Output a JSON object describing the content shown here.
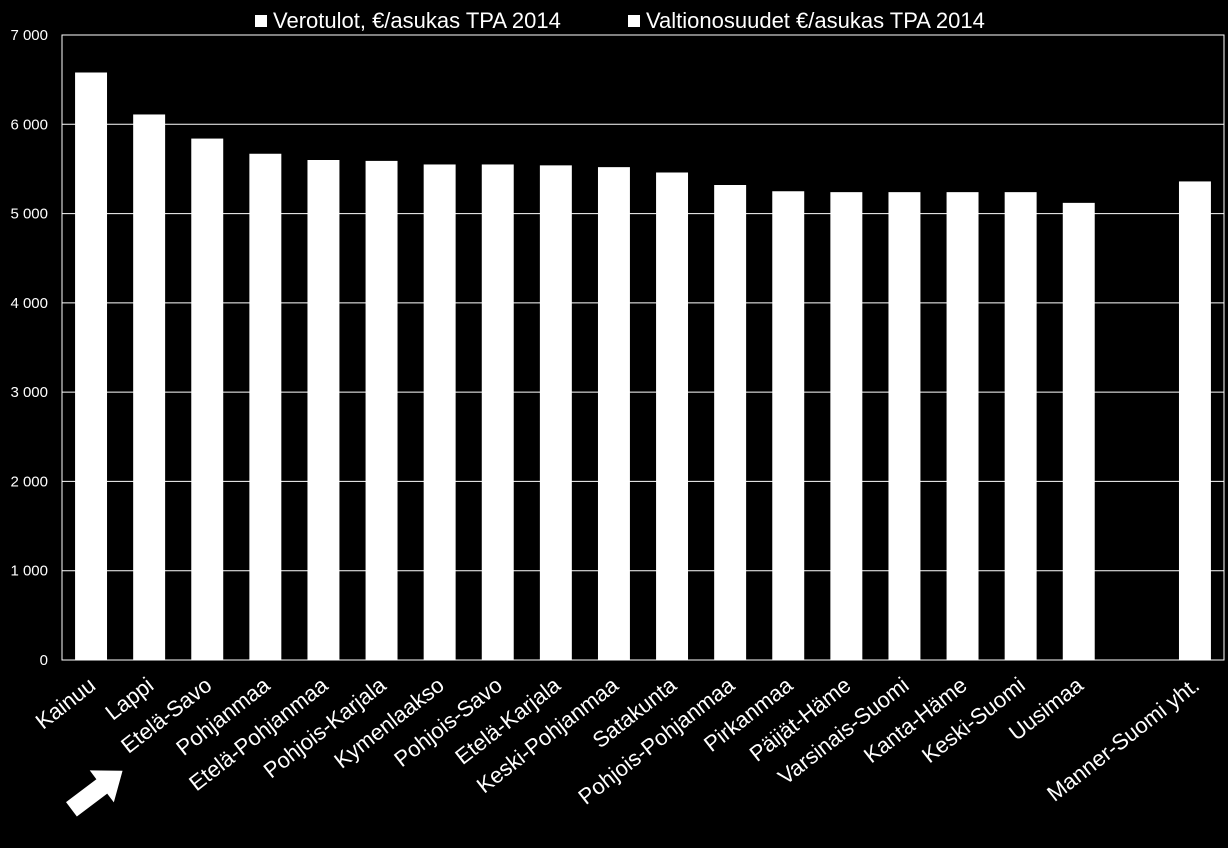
{
  "chart_data": {
    "type": "bar",
    "title": "",
    "xlabel": "",
    "ylabel": "",
    "ylim": [
      0,
      7000
    ],
    "y_ticks": [
      "0",
      "1 000",
      "2 000",
      "3 000",
      "4 000",
      "5 000",
      "6 000",
      "7 000"
    ],
    "grid": true,
    "legend_position": "top",
    "legend": [
      "Verotulot, €/asukas TPA 2014",
      "Valtionosuudet €/asukas TPA 2014"
    ],
    "categories": [
      "Kainuu",
      "Lappi",
      "Etelä-Savo",
      "Pohjanmaa",
      "Etelä-Pohjanmaa",
      "Pohjois-Karjala",
      "Kymenlaakso",
      "Pohjois-Savo",
      "Etelä-Karjala",
      "Keski-Pohjanmaa",
      "Satakunta",
      "Pohjois-Pohjanmaa",
      "Pirkanmaa",
      "Päijät-Häme",
      "Varsinais-Suomi",
      "Kanta-Häme",
      "Keski-Suomi",
      "Uusimaa",
      "",
      "Manner-Suomi yht."
    ],
    "series": [
      {
        "name": "Verotulot, €/asukas TPA 2014 + Valtionosuudet €/asukas TPA 2014",
        "values": [
          6580,
          6110,
          5840,
          5670,
          5600,
          5590,
          5550,
          5550,
          5540,
          5520,
          5460,
          5320,
          5250,
          5240,
          5240,
          5240,
          5240,
          5120,
          null,
          5360
        ]
      }
    ],
    "annotation": {
      "type": "arrow",
      "points_to": "Etelä-Savo"
    },
    "colors": {
      "background": "#000000",
      "bars": "#ffffff",
      "grid": "#ffffff",
      "text": "#ffffff"
    }
  }
}
